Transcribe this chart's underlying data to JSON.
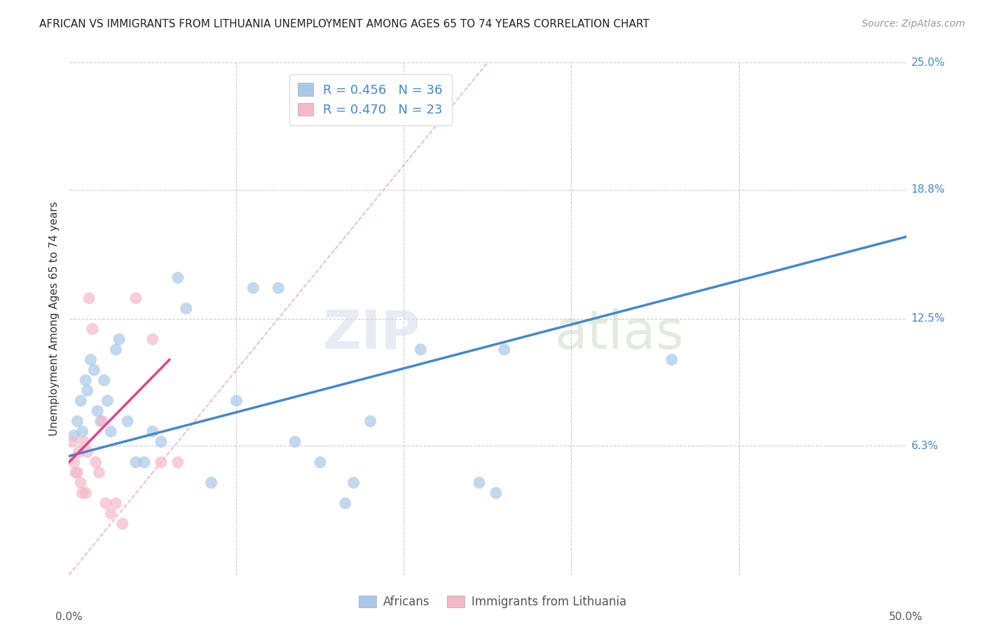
{
  "title": "AFRICAN VS IMMIGRANTS FROM LITHUANIA UNEMPLOYMENT AMONG AGES 65 TO 74 YEARS CORRELATION CHART",
  "source": "Source: ZipAtlas.com",
  "ylabel": "Unemployment Among Ages 65 to 74 years",
  "ytick_labels": [
    "6.3%",
    "12.5%",
    "18.8%",
    "25.0%"
  ],
  "ytick_values": [
    6.3,
    12.5,
    18.8,
    25.0
  ],
  "xlim": [
    0.0,
    50.0
  ],
  "ylim": [
    0.0,
    25.0
  ],
  "blue_R": 0.456,
  "blue_N": 36,
  "pink_R": 0.47,
  "pink_N": 23,
  "blue_color": "#a8c8e8",
  "pink_color": "#f5b8c8",
  "blue_line_color": "#4488cc",
  "pink_line_color": "#dd4488",
  "diag_color": "#e8a0b0",
  "legend_label_blue": "Africans",
  "legend_label_pink": "Immigrants from Lithuania",
  "title_color": "#222222",
  "source_color": "#999999",
  "watermark_zip": "ZIP",
  "watermark_atlas": "atlas",
  "blue_points_x": [
    0.3,
    0.5,
    0.7,
    0.8,
    1.0,
    1.1,
    1.3,
    1.5,
    1.7,
    1.9,
    2.1,
    2.3,
    2.5,
    2.8,
    3.0,
    3.5,
    4.0,
    4.5,
    5.0,
    5.5,
    6.5,
    7.0,
    8.5,
    10.0,
    11.0,
    12.5,
    13.5,
    15.0,
    16.5,
    17.0,
    18.0,
    21.0,
    24.5,
    25.5,
    26.0,
    36.0
  ],
  "blue_points_y": [
    6.8,
    7.5,
    8.5,
    7.0,
    9.5,
    9.0,
    10.5,
    10.0,
    8.0,
    7.5,
    9.5,
    8.5,
    7.0,
    11.0,
    11.5,
    7.5,
    5.5,
    5.5,
    7.0,
    6.5,
    14.5,
    13.0,
    4.5,
    8.5,
    14.0,
    14.0,
    6.5,
    5.5,
    3.5,
    4.5,
    7.5,
    11.0,
    4.5,
    4.0,
    11.0,
    10.5
  ],
  "pink_points_x": [
    0.2,
    0.3,
    0.4,
    0.5,
    0.6,
    0.7,
    0.8,
    0.9,
    1.0,
    1.1,
    1.2,
    1.4,
    1.6,
    1.8,
    2.0,
    2.2,
    2.5,
    2.8,
    3.2,
    4.0,
    5.0,
    5.5,
    6.5
  ],
  "pink_points_y": [
    6.5,
    5.5,
    5.0,
    5.0,
    6.0,
    4.5,
    4.0,
    6.5,
    4.0,
    6.0,
    13.5,
    12.0,
    5.5,
    5.0,
    7.5,
    3.5,
    3.0,
    3.5,
    2.5,
    13.5,
    11.5,
    5.5,
    5.5
  ],
  "blue_trend_x0": 0.0,
  "blue_trend_y0": 5.8,
  "blue_trend_x1": 50.0,
  "blue_trend_y1": 16.5,
  "pink_trend_x0": 0.0,
  "pink_trend_y0": 5.5,
  "pink_trend_x1": 6.0,
  "pink_trend_y1": 10.5,
  "pink_diag_x0": 0.0,
  "pink_diag_y0": 0.0,
  "pink_diag_x1": 25.0,
  "pink_diag_y1": 25.0
}
